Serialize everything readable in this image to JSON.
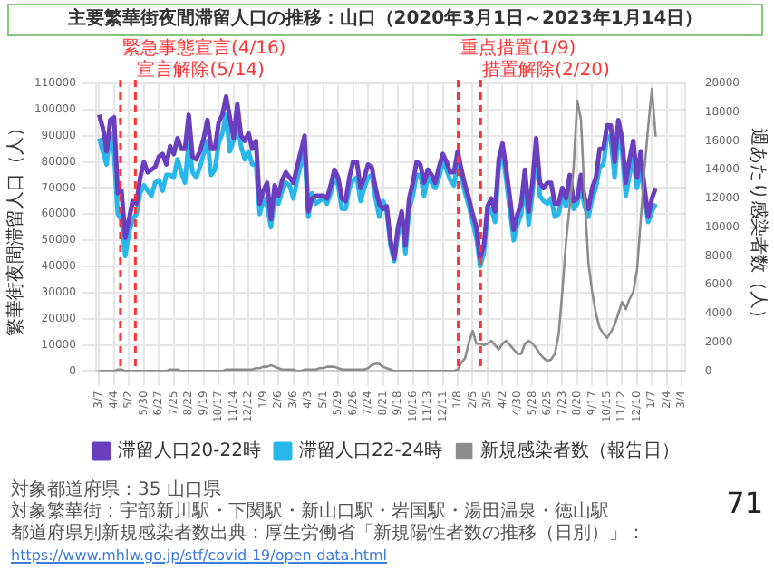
{
  "chart_data": {
    "type": "line",
    "title": "主要繁華街夜間滞留人口の推移：山口（2020年3月1日～2023年1月14日）",
    "ylabel": "繁華街夜間滞留人口（人）",
    "y2label": "週あたり感染者数（人）",
    "x": [
      "2020-03-07",
      "2020-03-14",
      "2020-03-21",
      "2020-03-28",
      "2020-04-04",
      "2020-04-11",
      "2020-04-18",
      "2020-04-25",
      "2020-05-02",
      "2020-05-09",
      "2020-05-16",
      "2020-05-23",
      "2020-05-30",
      "2020-06-06",
      "2020-06-13",
      "2020-06-20",
      "2020-06-27",
      "2020-07-04",
      "2020-07-11",
      "2020-07-18",
      "2020-07-25",
      "2020-08-01",
      "2020-08-08",
      "2020-08-15",
      "2020-08-22",
      "2020-08-29",
      "2020-09-05",
      "2020-09-12",
      "2020-09-19",
      "2020-09-26",
      "2020-10-03",
      "2020-10-10",
      "2020-10-17",
      "2020-10-24",
      "2020-10-31",
      "2020-11-07",
      "2020-11-14",
      "2020-11-21",
      "2020-11-28",
      "2020-12-05",
      "2020-12-12",
      "2020-12-19",
      "2020-12-26",
      "2021-01-02",
      "2021-01-09",
      "2021-01-16",
      "2021-01-23",
      "2021-01-30",
      "2021-02-06",
      "2021-02-13",
      "2021-02-20",
      "2021-02-27",
      "2021-03-06",
      "2021-03-13",
      "2021-03-20",
      "2021-03-27",
      "2021-04-03",
      "2021-04-10",
      "2021-04-17",
      "2021-04-24",
      "2021-05-01",
      "2021-05-08",
      "2021-05-15",
      "2021-05-22",
      "2021-05-29",
      "2021-06-05",
      "2021-06-12",
      "2021-06-19",
      "2021-06-26",
      "2021-07-03",
      "2021-07-10",
      "2021-07-17",
      "2021-07-24",
      "2021-07-31",
      "2021-08-07",
      "2021-08-14",
      "2021-08-21",
      "2021-08-28",
      "2021-09-04",
      "2021-09-11",
      "2021-09-18",
      "2021-09-25",
      "2021-10-02",
      "2021-10-09",
      "2021-10-16",
      "2021-10-23",
      "2021-10-30",
      "2021-11-06",
      "2021-11-13",
      "2021-11-20",
      "2021-11-27",
      "2021-12-04",
      "2021-12-11",
      "2021-12-18",
      "2021-12-25",
      "2022-01-01",
      "2022-01-08",
      "2022-01-15",
      "2022-01-22",
      "2022-01-29",
      "2022-02-05",
      "2022-02-12",
      "2022-02-19",
      "2022-02-26",
      "2022-03-05",
      "2022-03-12",
      "2022-03-19",
      "2022-03-26",
      "2022-04-02",
      "2022-04-09",
      "2022-04-16",
      "2022-04-23",
      "2022-04-30",
      "2022-05-07",
      "2022-05-14",
      "2022-05-21",
      "2022-05-28",
      "2022-06-04",
      "2022-06-11",
      "2022-06-18",
      "2022-06-25",
      "2022-07-02",
      "2022-07-09",
      "2022-07-16",
      "2022-07-23",
      "2022-07-30",
      "2022-08-06",
      "2022-08-13",
      "2022-08-20",
      "2022-08-27",
      "2022-09-03",
      "2022-09-10",
      "2022-09-17",
      "2022-09-24",
      "2022-10-01",
      "2022-10-08",
      "2022-10-15",
      "2022-10-22",
      "2022-10-29",
      "2022-11-05",
      "2022-11-12",
      "2022-11-19",
      "2022-11-26",
      "2022-12-03",
      "2022-12-10",
      "2022-12-17",
      "2022-12-24",
      "2022-12-31",
      "2023-01-07",
      "2023-01-14"
    ],
    "series": [
      {
        "name": "滞留人口20-22時",
        "color": "#6a3fbf",
        "values": [
          98000,
          93000,
          84000,
          96000,
          97000,
          68000,
          69000,
          51000,
          58000,
          65000,
          64000,
          74000,
          80000,
          76000,
          77000,
          78000,
          82000,
          83000,
          79000,
          86000,
          83000,
          89000,
          85000,
          85000,
          98000,
          82000,
          81000,
          84000,
          89000,
          96000,
          85000,
          85000,
          95000,
          98000,
          105000,
          97000,
          89000,
          102000,
          90000,
          88000,
          91000,
          85000,
          88000,
          64000,
          69000,
          72000,
          58000,
          71000,
          67000,
          73000,
          76000,
          74000,
          72000,
          78000,
          84000,
          90000,
          61000,
          66000,
          67000,
          67000,
          67000,
          66000,
          71000,
          77000,
          74000,
          66000,
          65000,
          74000,
          80000,
          80000,
          70000,
          74000,
          79000,
          78000,
          70000,
          64000,
          62000,
          63000,
          50000,
          43000,
          55000,
          61000,
          48000,
          66000,
          72000,
          80000,
          79000,
          72000,
          77000,
          75000,
          72000,
          78000,
          83000,
          80000,
          76000,
          76000,
          84000,
          77000,
          71000,
          66000,
          60000,
          55000,
          43000,
          48000,
          63000,
          66000,
          61000,
          81000,
          87000,
          77000,
          66000,
          54000,
          60000,
          64000,
          77000,
          61000,
          72000,
          89000,
          72000,
          70000,
          72000,
          72000,
          64000,
          64000,
          70000,
          66000,
          75000,
          65000,
          66000,
          75000,
          66000,
          62000,
          70000,
          74000,
          85000,
          85000,
          94000,
          94000,
          80000,
          96000,
          89000,
          72000,
          81000,
          88000,
          74000,
          84000,
          70000,
          59000,
          66000,
          70000
        ]
      },
      {
        "name": "滞留人口22-24時",
        "color": "#29b6e8",
        "values": [
          89000,
          84000,
          79000,
          91000,
          83000,
          60000,
          58000,
          44000,
          53000,
          58000,
          60000,
          68000,
          71000,
          69000,
          67000,
          72000,
          73000,
          69000,
          75000,
          75000,
          74000,
          81000,
          76000,
          72000,
          88000,
          76000,
          74000,
          78000,
          83000,
          88000,
          75000,
          77000,
          87000,
          91000,
          98000,
          84000,
          88000,
          95000,
          86000,
          81000,
          84000,
          79000,
          79000,
          60000,
          66000,
          63000,
          55000,
          66000,
          64000,
          69000,
          72000,
          71000,
          66000,
          73000,
          79000,
          84000,
          59000,
          68000,
          64000,
          65000,
          66000,
          64000,
          68000,
          74000,
          71000,
          62000,
          62000,
          70000,
          73000,
          74000,
          65000,
          70000,
          74000,
          75000,
          66000,
          59000,
          65000,
          61000,
          48000,
          42000,
          52000,
          58000,
          45000,
          62000,
          67000,
          75000,
          75000,
          67000,
          74000,
          72000,
          70000,
          74000,
          80000,
          77000,
          73000,
          71000,
          80000,
          74000,
          68000,
          63000,
          57000,
          51000,
          40000,
          45000,
          60000,
          62000,
          57000,
          78000,
          84000,
          73000,
          61000,
          50000,
          56000,
          60000,
          72000,
          56000,
          68000,
          84000,
          67000,
          65000,
          64000,
          66000,
          59000,
          60000,
          67000,
          63000,
          70000,
          62000,
          64000,
          70000,
          63000,
          59000,
          66000,
          70000,
          78000,
          79000,
          90000,
          89000,
          74000,
          90000,
          84000,
          67000,
          75000,
          81000,
          70000,
          78000,
          66000,
          57000,
          61000,
          64000
        ]
      },
      {
        "name": "新規感染者数（報告日）",
        "color": "#8c8c8c",
        "axis": "y2",
        "values": [
          0,
          0,
          0,
          0,
          0,
          100,
          100,
          0,
          0,
          0,
          0,
          0,
          0,
          0,
          0,
          0,
          0,
          0,
          0,
          100,
          100,
          100,
          0,
          0,
          0,
          0,
          0,
          0,
          0,
          0,
          0,
          0,
          0,
          0,
          100,
          100,
          100,
          100,
          100,
          100,
          100,
          100,
          200,
          200,
          300,
          300,
          400,
          300,
          200,
          100,
          100,
          100,
          100,
          0,
          0,
          100,
          100,
          100,
          100,
          200,
          200,
          300,
          300,
          300,
          200,
          100,
          100,
          100,
          100,
          100,
          100,
          100,
          200,
          400,
          500,
          500,
          300,
          200,
          100,
          0,
          0,
          0,
          0,
          0,
          0,
          0,
          0,
          0,
          0,
          0,
          0,
          0,
          0,
          0,
          0,
          0,
          100,
          600,
          900,
          2000,
          2800,
          1900,
          1900,
          1800,
          1900,
          2100,
          1800,
          1500,
          1900,
          2100,
          1800,
          1500,
          1200,
          1200,
          1900,
          2100,
          1900,
          1600,
          1200,
          900,
          700,
          800,
          1200,
          2500,
          5500,
          9000,
          11500,
          14000,
          18800,
          17500,
          12000,
          7500,
          5500,
          4000,
          3000,
          2600,
          2300,
          2700,
          3200,
          4000,
          4800,
          4300,
          5000,
          5500,
          7000,
          10500,
          14000,
          17000,
          19600,
          16300
        ]
      }
    ],
    "xlim": [
      "2020-03-01",
      "2023-03-10"
    ],
    "xticks": [
      {
        "value": "2020-03-07",
        "label": "3/7"
      },
      {
        "value": "2020-04-04",
        "label": "4/4"
      },
      {
        "value": "2020-05-02",
        "label": "5/2"
      },
      {
        "value": "2020-05-30",
        "label": "5/30"
      },
      {
        "value": "2020-06-27",
        "label": "6/27"
      },
      {
        "value": "2020-07-25",
        "label": "7/25"
      },
      {
        "value": "2020-08-22",
        "label": "8/22"
      },
      {
        "value": "2020-09-19",
        "label": "9/19"
      },
      {
        "value": "2020-10-17",
        "label": "10/17"
      },
      {
        "value": "2020-11-14",
        "label": "11/14"
      },
      {
        "value": "2020-12-12",
        "label": "12/12"
      },
      {
        "value": "2021-01-09",
        "label": "1/9"
      },
      {
        "value": "2021-02-06",
        "label": "2/6"
      },
      {
        "value": "2021-03-06",
        "label": "3/6"
      },
      {
        "value": "2021-04-03",
        "label": "4/3"
      },
      {
        "value": "2021-05-01",
        "label": "5/1"
      },
      {
        "value": "2021-05-29",
        "label": "5/29"
      },
      {
        "value": "2021-06-26",
        "label": "6/26"
      },
      {
        "value": "2021-07-24",
        "label": "7/24"
      },
      {
        "value": "2021-08-21",
        "label": "8/21"
      },
      {
        "value": "2021-09-18",
        "label": "9/18"
      },
      {
        "value": "2021-10-16",
        "label": "10/16"
      },
      {
        "value": "2021-11-13",
        "label": "11/13"
      },
      {
        "value": "2021-12-11",
        "label": "12/11"
      },
      {
        "value": "2022-01-08",
        "label": "1/8"
      },
      {
        "value": "2022-02-05",
        "label": "2/5"
      },
      {
        "value": "2022-03-05",
        "label": "3/5"
      },
      {
        "value": "2022-04-02",
        "label": "4/2"
      },
      {
        "value": "2022-04-30",
        "label": "4/30"
      },
      {
        "value": "2022-05-28",
        "label": "5/28"
      },
      {
        "value": "2022-06-25",
        "label": "6/25"
      },
      {
        "value": "2022-07-23",
        "label": "7/23"
      },
      {
        "value": "2022-08-20",
        "label": "8/20"
      },
      {
        "value": "2022-09-17",
        "label": "9/17"
      },
      {
        "value": "2022-10-15",
        "label": "10/15"
      },
      {
        "value": "2022-11-12",
        "label": "11/12"
      },
      {
        "value": "2022-12-10",
        "label": "12/10"
      },
      {
        "value": "2023-01-07",
        "label": "1/7"
      },
      {
        "value": "2023-02-04",
        "label": "2/4"
      },
      {
        "value": "2023-03-04",
        "label": "3/4"
      }
    ],
    "ylim": [
      0,
      110000
    ],
    "yticks": [
      0,
      10000,
      20000,
      30000,
      40000,
      50000,
      60000,
      70000,
      80000,
      90000,
      100000,
      110000
    ],
    "y2lim": [
      0,
      20000
    ],
    "y2ticks": [
      0,
      2000,
      4000,
      6000,
      8000,
      10000,
      12000,
      14000,
      16000,
      18000,
      20000
    ],
    "ref_lines": [
      {
        "axis": "x",
        "value": "2020-04-16",
        "label": "緊急事態宣言(4/16)",
        "color": "#ff3333",
        "line_style": "dashed"
      },
      {
        "axis": "x",
        "value": "2020-05-14",
        "label": "宣言解除(5/14)",
        "color": "#ff3333",
        "line_style": "dashed"
      },
      {
        "axis": "x",
        "value": "2022-01-09",
        "label": "重点措置(1/9)",
        "color": "#ff3333",
        "line_style": "dashed"
      },
      {
        "axis": "x",
        "value": "2022-02-20",
        "label": "措置解除(2/20)",
        "color": "#ff3333",
        "line_style": "dashed"
      }
    ],
    "grid": true,
    "legend": "bottom",
    "annotations": [
      "対象都道府県：35 山口県",
      "対象繁華街：宇部新川駅・下関駅・新山口駅・岩国駅・湯田温泉・徳山駅",
      "都道府県別新規感染者数出典：厚生労働省「新規陽性者数の推移（日別）」：",
      "https://www.mhlw.go.jp/stf/covid-19/open-data.html",
      "71"
    ]
  }
}
